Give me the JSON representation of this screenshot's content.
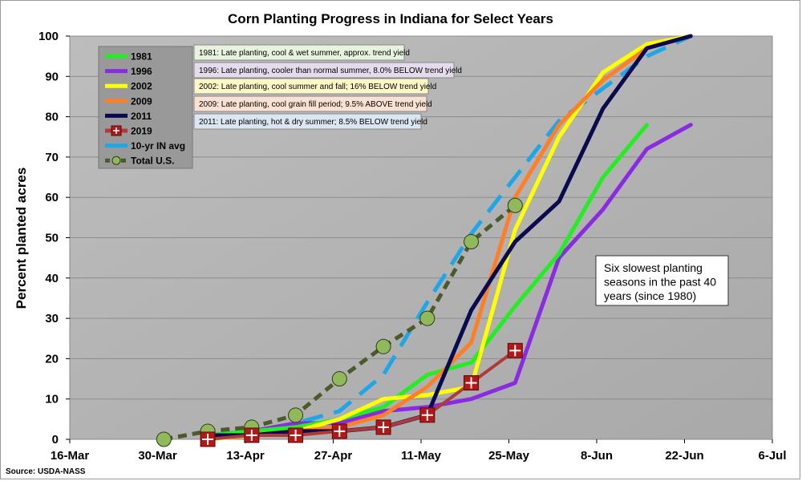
{
  "chart_data": {
    "type": "line",
    "title": "Corn Planting Progress in Indiana for Select Years",
    "ylabel": "Percent planted acres",
    "xlabel": "",
    "ylim": [
      0,
      100
    ],
    "yticks": [
      0,
      10,
      20,
      30,
      40,
      50,
      60,
      70,
      80,
      90,
      100
    ],
    "xlim": [
      "16-Mar",
      "6-Jul"
    ],
    "xticks": [
      "16-Mar",
      "30-Mar",
      "13-Apr",
      "27-Apr",
      "11-May",
      "25-May",
      "8-Jun",
      "22-Jun",
      "6-Jul"
    ],
    "grid": "horizontal",
    "legend_position": "top-left",
    "source": "Source: USDA-NASS",
    "annotation": [
      "Six slowest planting",
      "seasons in the past 40",
      "years (since 1980)"
    ],
    "series": [
      {
        "name": "1981",
        "color": "#22ee22",
        "style": "solid",
        "x": [
          "7-Apr",
          "14-Apr",
          "21-Apr",
          "28-Apr",
          "5-May",
          "12-May",
          "19-May",
          "26-May",
          "2-Jun",
          "9-Jun",
          "16-Jun"
        ],
        "y": [
          1,
          2,
          3,
          5,
          8,
          16,
          19,
          33,
          46,
          65,
          78
        ]
      },
      {
        "name": "1996",
        "color": "#8a2be2",
        "style": "solid",
        "x": [
          "7-Apr",
          "14-Apr",
          "21-Apr",
          "28-Apr",
          "5-May",
          "12-May",
          "19-May",
          "26-May",
          "2-Jun",
          "9-Jun",
          "16-Jun",
          "23-Jun"
        ],
        "y": [
          1,
          2,
          4,
          4,
          7,
          8,
          10,
          14,
          45,
          57,
          72,
          78
        ]
      },
      {
        "name": "2002",
        "color": "#ffff00",
        "style": "solid",
        "x": [
          "7-Apr",
          "14-Apr",
          "21-Apr",
          "28-Apr",
          "5-May",
          "12-May",
          "19-May",
          "26-May",
          "2-Jun",
          "9-Jun",
          "16-Jun",
          "23-Jun"
        ],
        "y": [
          0,
          1,
          2,
          5,
          10,
          11,
          13,
          52,
          75,
          91,
          98,
          100
        ]
      },
      {
        "name": "2009",
        "color": "#ff7f27",
        "style": "solid",
        "x": [
          "7-Apr",
          "14-Apr",
          "21-Apr",
          "28-Apr",
          "5-May",
          "12-May",
          "19-May",
          "26-May",
          "2-Jun",
          "9-Jun",
          "16-Jun",
          "23-Jun"
        ],
        "y": [
          1,
          1,
          2,
          3,
          6,
          13,
          24,
          60,
          78,
          89,
          97,
          100
        ]
      },
      {
        "name": "2011",
        "color": "#0a0a50",
        "style": "solid",
        "x": [
          "7-Apr",
          "14-Apr",
          "21-Apr",
          "28-Apr",
          "5-May",
          "12-May",
          "19-May",
          "26-May",
          "2-Jun",
          "9-Jun",
          "16-Jun",
          "23-Jun"
        ],
        "y": [
          1,
          1,
          2,
          2,
          3,
          6,
          32,
          49,
          59,
          82,
          97,
          100
        ]
      },
      {
        "name": "2019",
        "color": "#b03a3a",
        "style": "solid-marker",
        "x": [
          "7-Apr",
          "14-Apr",
          "21-Apr",
          "28-Apr",
          "5-May",
          "12-May",
          "19-May",
          "26-May"
        ],
        "y": [
          0,
          1,
          1,
          2,
          3,
          6,
          14,
          22
        ]
      },
      {
        "name": "10-yr IN avg",
        "color": "#1ea7e8",
        "style": "dashed",
        "x": [
          "7-Apr",
          "14-Apr",
          "21-Apr",
          "28-Apr",
          "5-May",
          "12-May",
          "19-May",
          "26-May",
          "2-Jun",
          "9-Jun",
          "16-Jun",
          "23-Jun"
        ],
        "y": [
          1,
          2,
          4,
          7,
          16,
          34,
          51,
          65,
          79,
          87,
          95,
          100
        ]
      },
      {
        "name": "Total U.S.",
        "color": "#4b5a2a",
        "style": "dashed-marker",
        "x": [
          "31-Mar",
          "7-Apr",
          "14-Apr",
          "21-Apr",
          "28-Apr",
          "5-May",
          "12-May",
          "19-May",
          "26-May"
        ],
        "y": [
          0,
          2,
          3,
          6,
          15,
          23,
          30,
          49,
          58
        ]
      }
    ],
    "notes": [
      {
        "text": "1981: Late planting, cool & wet summer, approx. trend yield",
        "bg": "#e8f3df"
      },
      {
        "text": "1996: Late planting, cooler than normal summer, 8.0% BELOW trend yield",
        "bg": "#e4dced"
      },
      {
        "text": "2002: Late planting, cool summer and fall; 16% BELOW trend yield",
        "bg": "#fdf7c8"
      },
      {
        "text": "2009: Late planting, cool grain fill period; 9.5% ABOVE trend yield",
        "bg": "#fbe1d2"
      },
      {
        "text": "2011: Late planting, hot & dry summer; 8.5% BELOW trend yield",
        "bg": "#dbe6f3"
      }
    ]
  }
}
